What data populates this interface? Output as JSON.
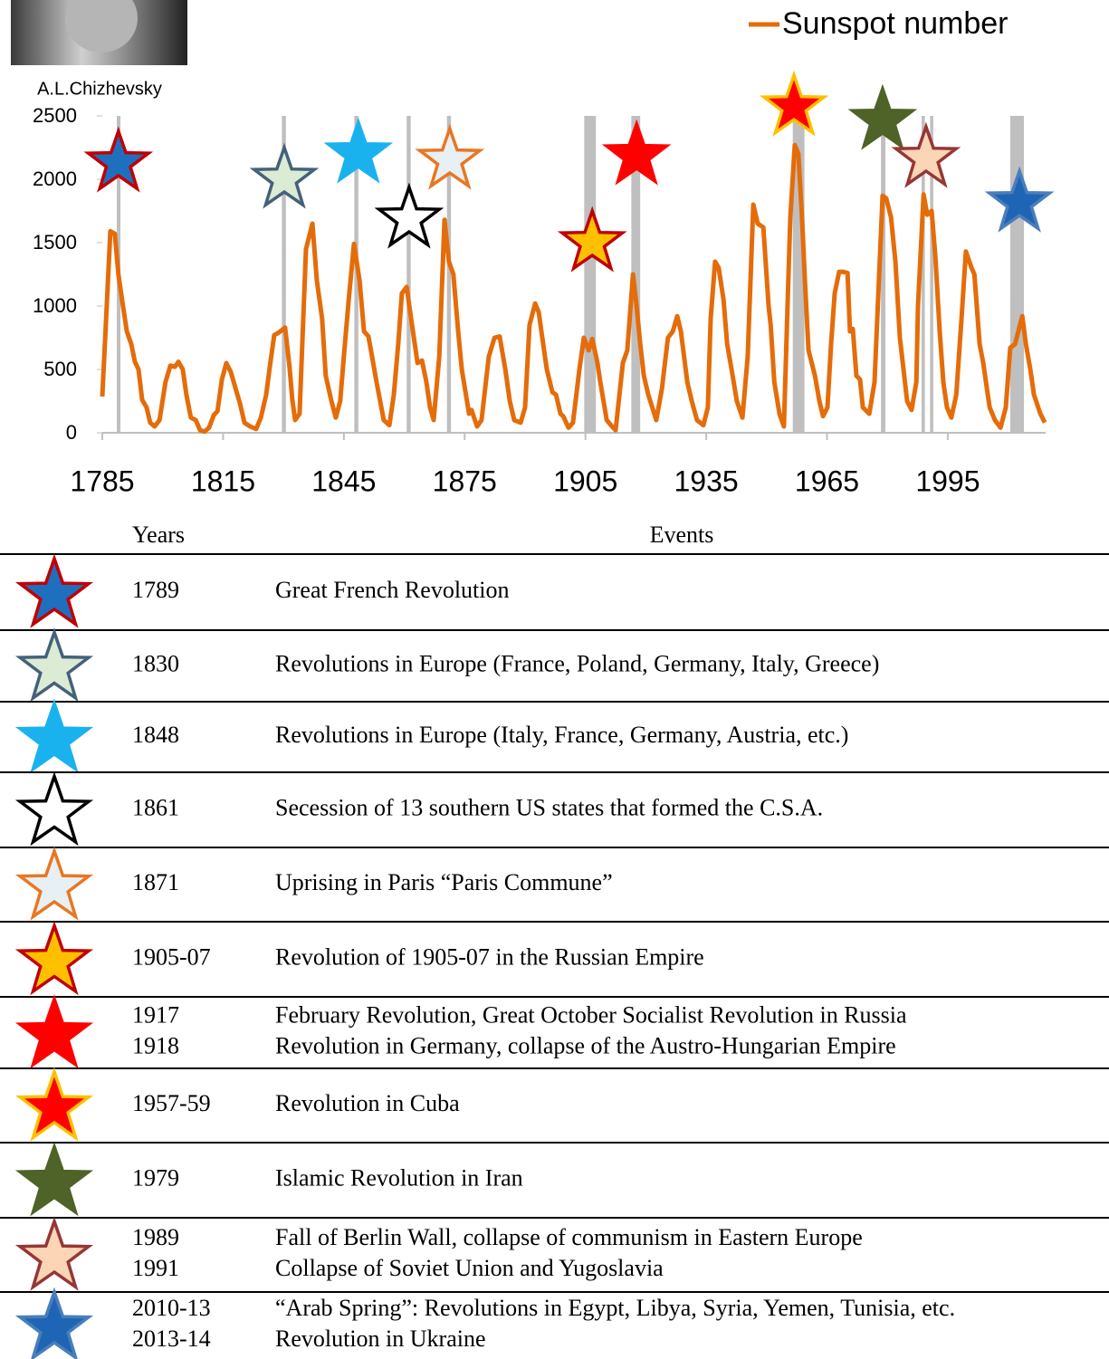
{
  "chart_data": {
    "type": "line",
    "photo_caption": "A.L.Chizhevsky",
    "series": [
      {
        "name": "Sunspot number",
        "color": "#e46c0a",
        "x": [
          1785.0,
          1786.1,
          1787.0,
          1788.1,
          1789.0,
          1789.9,
          1791.1,
          1792.2,
          1793.1,
          1794.0,
          1794.9,
          1796.0,
          1796.9,
          1798.0,
          1799.2,
          1800.7,
          1801.9,
          1803.0,
          1803.9,
          1805.0,
          1805.9,
          1807.0,
          1808.2,
          1809.3,
          1810.4,
          1811.5,
          1812.7,
          1813.6,
          1814.7,
          1815.8,
          1816.9,
          1818.1,
          1819.2,
          1820.3,
          1821.7,
          1823.2,
          1824.4,
          1825.7,
          1826.6,
          1827.7,
          1828.8,
          1830.4,
          1831.5,
          1832.2,
          1832.9,
          1834.0,
          1835.6,
          1837.2,
          1838.3,
          1839.6,
          1840.5,
          1841.9,
          1843.0,
          1844.1,
          1845.0,
          1846.2,
          1847.5,
          1848.9,
          1850.0,
          1851.1,
          1852.0,
          1853.1,
          1854.9,
          1856.3,
          1857.4,
          1858.5,
          1859.4,
          1860.6,
          1861.7,
          1863.3,
          1864.4,
          1865.5,
          1866.4,
          1867.3,
          1868.7,
          1870.0,
          1871.1,
          1872.2,
          1873.4,
          1874.3,
          1876.1,
          1876.7,
          1878.1,
          1879.2,
          1881.0,
          1882.4,
          1883.7,
          1885.1,
          1886.2,
          1887.3,
          1888.9,
          1890.0,
          1891.1,
          1892.5,
          1893.4,
          1894.5,
          1895.4,
          1896.8,
          1897.7,
          1898.8,
          1899.5,
          1900.8,
          1901.9,
          1903.5,
          1904.6,
          1905.8,
          1906.7,
          1908.0,
          1908.7,
          1910.3,
          1911.6,
          1912.5,
          1914.3,
          1915.4,
          1916.8,
          1917.7,
          1918.6,
          1919.5,
          1920.6,
          1922.6,
          1924.0,
          1925.5,
          1926.7,
          1927.8,
          1928.7,
          1930.3,
          1931.4,
          1932.7,
          1934.3,
          1935.4,
          1936.1,
          1937.2,
          1938.1,
          1939.3,
          1940.2,
          1941.3,
          1942.6,
          1944.0,
          1945.3,
          1946.7,
          1947.8,
          1949.2,
          1950.5,
          1951.0,
          1951.9,
          1953.2,
          1954.3,
          1955.2,
          1955.9,
          1957.0,
          1957.9,
          1958.8,
          1959.5,
          1960.4,
          1962.0,
          1963.1,
          1964.0,
          1965.1,
          1966.0,
          1966.9,
          1968.0,
          1968.9,
          1970.1,
          1970.7,
          1971.4,
          1972.3,
          1973.2,
          1973.9,
          1975.5,
          1976.8,
          1978.8,
          1979.7,
          1980.9,
          1982.0,
          1983.1,
          1984.0,
          1984.9,
          1986.0,
          1987.2,
          1987.6,
          1989.0,
          1989.9,
          1991.0,
          1991.9,
          1993.0,
          1993.9,
          1994.8,
          1995.9,
          1997.1,
          1998.4,
          1999.5,
          2000.9,
          2001.6,
          2002.9,
          2003.8,
          2004.7,
          2005.4,
          2006.7,
          2008.1,
          2009.4,
          2010.5,
          2011.7,
          2013.5,
          2014.4,
          2015.5,
          2016.4,
          2018.0,
          2019.1
        ],
        "values": [
          286,
          1000,
          1590,
          1570,
          1250,
          1050,
          800,
          700,
          560,
          500,
          260,
          200,
          80,
          50,
          100,
          400,
          530,
          520,
          560,
          500,
          300,
          120,
          100,
          20,
          10,
          40,
          140,
          170,
          420,
          550,
          480,
          350,
          230,
          80,
          50,
          30,
          120,
          300,
          520,
          770,
          790,
          830,
          520,
          260,
          100,
          150,
          1450,
          1650,
          1200,
          900,
          450,
          250,
          120,
          250,
          600,
          1050,
          1490,
          1200,
          800,
          760,
          600,
          400,
          100,
          60,
          300,
          700,
          1100,
          1150,
          900,
          550,
          570,
          400,
          200,
          100,
          600,
          1680,
          1350,
          1250,
          800,
          500,
          150,
          180,
          50,
          100,
          600,
          750,
          760,
          500,
          250,
          100,
          80,
          200,
          850,
          1020,
          950,
          700,
          500,
          320,
          300,
          150,
          130,
          40,
          80,
          500,
          750,
          650,
          740,
          550,
          400,
          100,
          50,
          20,
          550,
          650,
          1250,
          1000,
          700,
          450,
          300,
          100,
          350,
          750,
          800,
          920,
          800,
          400,
          250,
          100,
          60,
          200,
          900,
          1350,
          1300,
          1050,
          700,
          500,
          250,
          120,
          600,
          1800,
          1650,
          1620,
          1000,
          850,
          400,
          150,
          50,
          1000,
          1700,
          2270,
          2200,
          1700,
          1200,
          650,
          450,
          250,
          130,
          200,
          700,
          1100,
          1270,
          1270,
          1260,
          800,
          820,
          450,
          420,
          200,
          150,
          400,
          1870,
          1850,
          1700,
          1350,
          750,
          500,
          250,
          180,
          400,
          1000,
          1880,
          1720,
          1750,
          1400,
          800,
          400,
          200,
          120,
          300,
          900,
          1430,
          1300,
          1250,
          700,
          550,
          350,
          200,
          100,
          40,
          200,
          670,
          700,
          920,
          700,
          500,
          300,
          150,
          80
        ]
      }
    ],
    "xlim": [
      1785,
      2019.3
    ],
    "xticks": [
      1785,
      1815,
      1845,
      1875,
      1905,
      1935,
      1965,
      1995
    ],
    "ylim": [
      0,
      2500
    ],
    "yticks": [
      0,
      500,
      1000,
      1500,
      2000,
      2500
    ],
    "band_color": "#bfbfbf",
    "bands": [
      [
        1788.6,
        1789.5
      ],
      [
        1829.6,
        1830.6
      ],
      [
        1847.6,
        1848.6
      ],
      [
        1860.6,
        1861.6
      ],
      [
        1870.6,
        1871.6
      ],
      [
        1904.7,
        1907.6
      ],
      [
        1916.4,
        1918.6
      ],
      [
        1956.5,
        1959.4
      ],
      [
        1978.4,
        1979.5
      ],
      [
        1988.5,
        1989.3
      ],
      [
        1990.6,
        1991.4
      ],
      [
        2010.5,
        2013.9
      ]
    ],
    "markers": [
      {
        "x": 1789.0,
        "y": 2129,
        "fill": "#1f6fbf",
        "stroke": "#c00000"
      },
      {
        "x": 1830.2,
        "y": 2000,
        "fill": "#dcebd3",
        "stroke": "#44617b"
      },
      {
        "x": 1848.6,
        "y": 2200,
        "fill": "#1ab2ee",
        "stroke": "#1ab2ee"
      },
      {
        "x": 1861.2,
        "y": 1686,
        "fill": "#ffffff",
        "stroke": "#000000"
      },
      {
        "x": 1871.3,
        "y": 2150,
        "fill": "#e6f0f5",
        "stroke": "#e87722"
      },
      {
        "x": 1906.7,
        "y": 1500,
        "fill": "#ffc000",
        "stroke": "#c00000"
      },
      {
        "x": 1917.7,
        "y": 2186,
        "fill": "#ff0000",
        "stroke": "#ff0000"
      },
      {
        "x": 1956.8,
        "y": 2571,
        "fill": "#ff0000",
        "stroke": "#ffc000"
      },
      {
        "x": 1978.8,
        "y": 2464,
        "fill": "#4f6228",
        "stroke": "#4f6228"
      },
      {
        "x": 1989.6,
        "y": 2164,
        "fill": "#fbd5b5",
        "stroke": "#953735"
      },
      {
        "x": 2012.8,
        "y": 1814,
        "fill": "#1f65b5",
        "stroke": "#4a7ebb"
      }
    ]
  },
  "table": {
    "headers": [
      "Years",
      "Events"
    ],
    "rows": [
      {
        "years": [
          "1789"
        ],
        "events": [
          "Great French Revolution"
        ]
      },
      {
        "years": [
          "1830"
        ],
        "events": [
          "Revolutions in Europe (France, Poland, Germany, Italy, Greece)"
        ]
      },
      {
        "years": [
          "1848"
        ],
        "events": [
          "Revolutions in Europe (Italy, France, Germany, Austria, etc.)"
        ]
      },
      {
        "years": [
          "1861"
        ],
        "events": [
          "Secession of 13 southern US states that formed the C.S.A."
        ]
      },
      {
        "years": [
          "1871"
        ],
        "events": [
          "Uprising in Paris “Paris Commune”"
        ]
      },
      {
        "years": [
          "1905-07"
        ],
        "events": [
          "Revolution of 1905-07 in the Russian Empire"
        ]
      },
      {
        "years": [
          "1917",
          "1918"
        ],
        "events": [
          "February Revolution, Great October Socialist Revolution in Russia",
          "Revolution in Germany, collapse of the Austro-Hungarian Empire"
        ]
      },
      {
        "years": [
          "1957-59"
        ],
        "events": [
          "Revolution in Cuba"
        ]
      },
      {
        "years": [
          "1979"
        ],
        "events": [
          "Islamic Revolution in Iran"
        ]
      },
      {
        "years": [
          "1989",
          "1991"
        ],
        "events": [
          "Fall of Berlin Wall, collapse of communism in Eastern Europe",
          "Collapse of Soviet Union and Yugoslavia"
        ]
      },
      {
        "years": [
          "2010-13",
          "2013-14"
        ],
        "events": [
          "“Arab Spring”: Revolutions in Egypt, Libya, Syria, Yemen, Tunisia, etc.",
          "Revolution in Ukraine"
        ]
      }
    ]
  }
}
